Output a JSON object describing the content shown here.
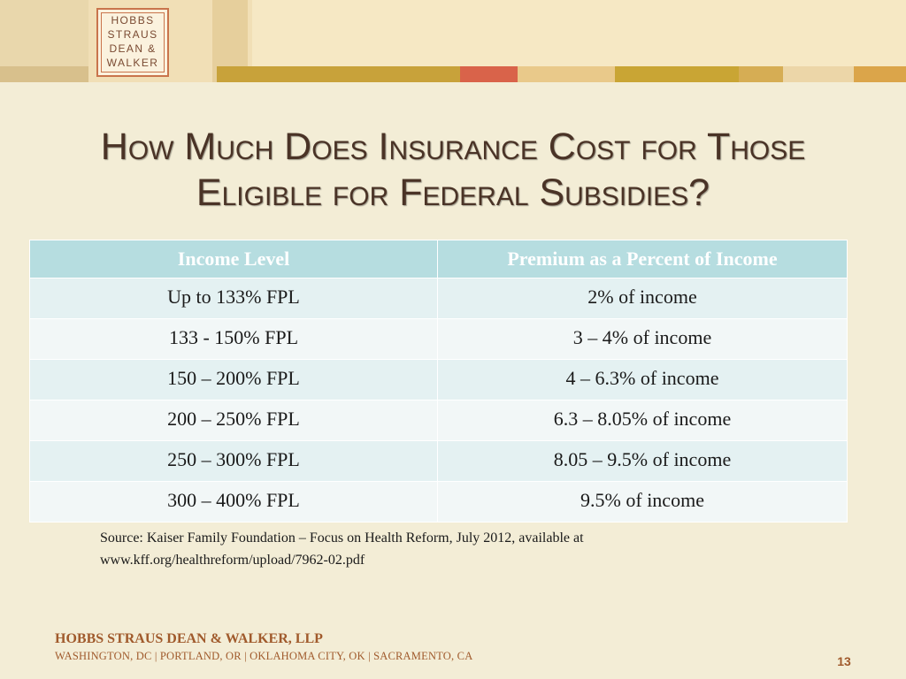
{
  "logo": {
    "lines": [
      "HOBBS",
      "STRAUS",
      "DEAN &",
      "WALKER"
    ]
  },
  "colors": {
    "background": "#f3edd6",
    "banner": "#f6e8c4",
    "title": "#4a3326",
    "header_fill": "#b6dde0",
    "accent_brown": "#a05a2c",
    "accent_red": "#d9634a",
    "accent_gold": "#d7a93a"
  },
  "title": {
    "line1": "How Much Does Insurance Cost for Those",
    "line2": "Eligible for Federal Subsidies?"
  },
  "table": {
    "headers": [
      "Income Level",
      "Premium as a Percent of Income"
    ],
    "rows": [
      [
        "Up to 133% FPL",
        "2% of income"
      ],
      [
        "133 - 150% FPL",
        "3 – 4% of income"
      ],
      [
        "150 – 200% FPL",
        "4 – 6.3% of income"
      ],
      [
        "200 – 250% FPL",
        "6.3 – 8.05% of income"
      ],
      [
        "250 – 300% FPL",
        "8.05 – 9.5% of income"
      ],
      [
        "300 – 400% FPL",
        "9.5% of income"
      ]
    ]
  },
  "source": {
    "line1": "Source:  Kaiser Family Foundation – Focus on Health Reform, July 2012, available at",
    "line2": "www.kff.org/healthreform/upload/7962-02.pdf"
  },
  "footer": {
    "firm": "HOBBS STRAUS DEAN & WALKER, LLP",
    "locations": "WASHINGTON, DC | PORTLAND, OR | OKLAHOMA CITY, OK | SACRAMENTO, CA",
    "page_number": "13"
  }
}
